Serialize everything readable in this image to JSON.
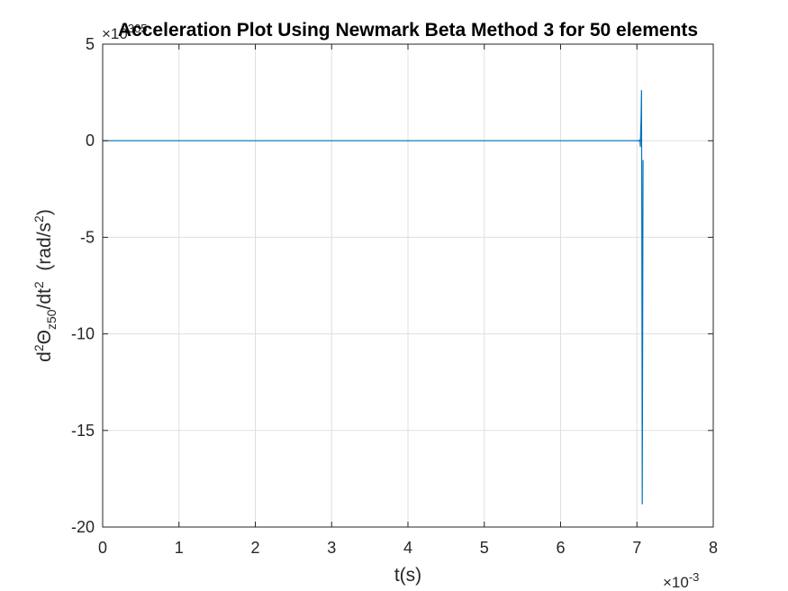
{
  "chart_data": {
    "type": "line",
    "title": "Acceleration Plot Using Newmark Beta Method 3 for 50 elements",
    "xlabel": "t(s)",
    "ylabel": {
      "base": "d",
      "sup1": "2",
      "theta": "Θ",
      "sub": "z50",
      "mid": "/dt",
      "sup2": "2",
      "units_open": "  (rad/s",
      "sup3": "2",
      "units_close": ")"
    },
    "x_exponent": {
      "prefix": "×10",
      "power": "-3"
    },
    "y_exponent": {
      "prefix": "×10",
      "power": "305"
    },
    "xlim": [
      0,
      8
    ],
    "ylim": [
      -20,
      5
    ],
    "x_scale": 0.001,
    "y_scale": 1e+305,
    "xticks": [
      0,
      1,
      2,
      3,
      4,
      5,
      6,
      7,
      8
    ],
    "yticks": [
      5,
      0,
      -5,
      -10,
      -15,
      -20
    ],
    "grid": true,
    "colors": {
      "line": "#0072BD",
      "grid": "#dfdfdf",
      "axis": "#262626"
    },
    "series": [
      {
        "x": [
          0,
          1,
          2,
          3,
          4,
          5,
          6,
          6.9,
          7.0,
          7.02,
          7.03,
          7.04,
          7.045,
          7.05,
          7.055,
          7.06,
          7.065,
          7.07,
          7.08
        ],
        "values": [
          0,
          0,
          0,
          0,
          0,
          0,
          0,
          0,
          0,
          0.01,
          -0.02,
          0.05,
          -0.3,
          0.6,
          1.2,
          2.6,
          -6.0,
          -18.8,
          -1.0
        ]
      }
    ]
  }
}
